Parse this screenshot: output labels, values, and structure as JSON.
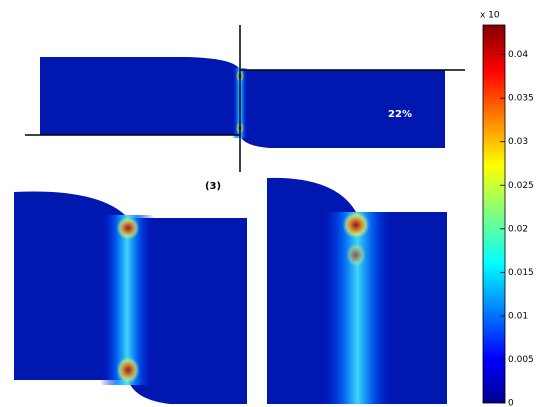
{
  "annotations": {
    "panel_label": "(3)",
    "strain_label": "22%"
  },
  "colorbar": {
    "multiplier": "x 10",
    "lim": [
      0,
      0.0434
    ],
    "ticks": [
      0,
      0.005,
      0.01,
      0.015,
      0.02,
      0.025,
      0.03,
      0.035,
      0.04
    ]
  }
}
